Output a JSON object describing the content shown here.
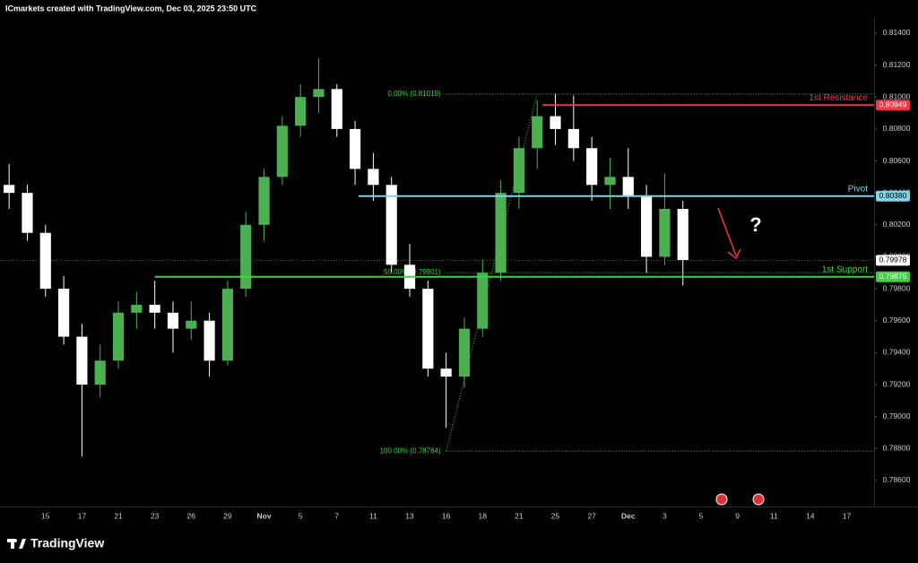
{
  "header": "ICmarkets created with TradingView.com, Dec 03, 2025 23:50 UTC",
  "brand": "TradingView",
  "chart_data": {
    "type": "candlestick",
    "up_color": "#4caf50",
    "down_color": "#ffffff",
    "grid": false,
    "categories": [
      null,
      null,
      "15",
      null,
      "17",
      null,
      "21",
      null,
      "23",
      null,
      "26",
      null,
      "29",
      null,
      "Nov",
      null,
      "5",
      null,
      "7",
      null,
      "11",
      null,
      "13",
      null,
      "16",
      null,
      "18",
      null,
      "21",
      null,
      "25",
      null,
      "27",
      null,
      "Dec",
      null,
      "3",
      null,
      "5",
      null,
      "9",
      null,
      "11",
      null,
      "14",
      null,
      "17",
      null
    ],
    "open": [
      0.8045,
      0.804,
      0.8015,
      0.798,
      0.795,
      0.792,
      0.7935,
      0.7965,
      0.797,
      0.7965,
      0.7955,
      0.796,
      0.7935,
      0.798,
      0.802,
      0.805,
      0.8082,
      0.81,
      0.8105,
      0.808,
      0.8055,
      0.8045,
      0.7995,
      0.798,
      0.793,
      0.7925,
      0.7955,
      0.799,
      0.804,
      0.8068,
      0.8088,
      0.808,
      0.8068,
      0.8045,
      0.805,
      0.8038,
      0.8,
      0.803,
      null,
      null,
      null,
      null,
      null,
      null,
      null,
      null,
      null,
      null
    ],
    "high": [
      0.8058,
      0.8045,
      0.802,
      0.7988,
      0.7958,
      0.7945,
      0.7972,
      0.7978,
      0.7985,
      0.7972,
      0.7972,
      0.7965,
      0.7985,
      0.8028,
      0.8055,
      0.8088,
      0.8108,
      0.8124,
      0.8108,
      0.8085,
      0.8065,
      0.805,
      0.8008,
      0.7985,
      0.794,
      0.7962,
      0.7998,
      0.8048,
      0.8075,
      0.8098,
      0.8102,
      0.8101,
      0.8075,
      0.8062,
      0.8068,
      0.8045,
      0.8052,
      0.8035,
      null,
      null,
      null,
      null,
      null,
      null,
      null,
      null,
      null,
      null
    ],
    "low": [
      0.803,
      0.801,
      0.7975,
      0.7945,
      0.7875,
      0.7912,
      0.793,
      0.7955,
      0.7955,
      0.794,
      0.7948,
      0.7925,
      0.7932,
      0.7975,
      0.801,
      0.8045,
      0.8075,
      0.809,
      0.8075,
      0.8045,
      0.8035,
      0.799,
      0.7975,
      0.7925,
      0.7893,
      0.7918,
      0.795,
      0.7985,
      0.803,
      0.8055,
      0.807,
      0.806,
      0.8035,
      0.803,
      0.803,
      0.799,
      0.7995,
      0.7982,
      null,
      null,
      null,
      null,
      null,
      null,
      null,
      null,
      null,
      null
    ],
    "close": [
      0.804,
      0.8015,
      0.798,
      0.795,
      0.792,
      0.7935,
      0.7965,
      0.797,
      0.7965,
      0.7955,
      0.796,
      0.7935,
      0.798,
      0.802,
      0.805,
      0.8082,
      0.81,
      0.8105,
      0.808,
      0.8055,
      0.8045,
      0.7995,
      0.798,
      0.793,
      0.7925,
      0.7955,
      0.799,
      0.804,
      0.8068,
      0.8088,
      0.808,
      0.8068,
      0.8045,
      0.805,
      0.8038,
      0.8,
      0.803,
      0.7998,
      null,
      null,
      null,
      null,
      null,
      null,
      null,
      null,
      null,
      null
    ],
    "ylim": [
      0.78437,
      0.81495
    ],
    "yticks": [
      {
        "value": 0.814,
        "label": "0.81400"
      },
      {
        "value": 0.812,
        "label": "0.81200"
      },
      {
        "value": 0.81,
        "label": "0.81000"
      },
      {
        "value": 0.808,
        "label": "0.80800"
      },
      {
        "value": 0.806,
        "label": "0.80600"
      },
      {
        "value": 0.804,
        "label": "0.80400"
      },
      {
        "value": 0.802,
        "label": "0.80200"
      },
      {
        "value": 0.8,
        "label": "0.80000"
      },
      {
        "value": 0.798,
        "label": "0.79800"
      },
      {
        "value": 0.796,
        "label": "0.79600"
      },
      {
        "value": 0.794,
        "label": "0.79400"
      },
      {
        "value": 0.792,
        "label": "0.79200"
      },
      {
        "value": 0.79,
        "label": "0.79000"
      },
      {
        "value": 0.788,
        "label": "0.78800"
      },
      {
        "value": 0.786,
        "label": "0.78600"
      }
    ],
    "levels": [
      {
        "name": "1st Resistance",
        "value": 0.80949,
        "label": "0.80949",
        "color": "#f23645"
      },
      {
        "name": "Pivot",
        "value": 0.8038,
        "label": "0.80380",
        "color": "#7fd4e6"
      },
      {
        "name": "1st Support",
        "value": 0.79875,
        "label": "0.79875",
        "color": "#3fd13f"
      }
    ],
    "fib": [
      {
        "value": 0.81019,
        "label": "0.00% (0.81019)"
      },
      {
        "value": 0.79901,
        "label": "50.00% (0.79901)"
      },
      {
        "value": 0.78784,
        "label": "100.00% (0.78784)"
      }
    ],
    "fib_color": "#3fd13f",
    "last_price": 0.79978,
    "annotation": "?"
  }
}
